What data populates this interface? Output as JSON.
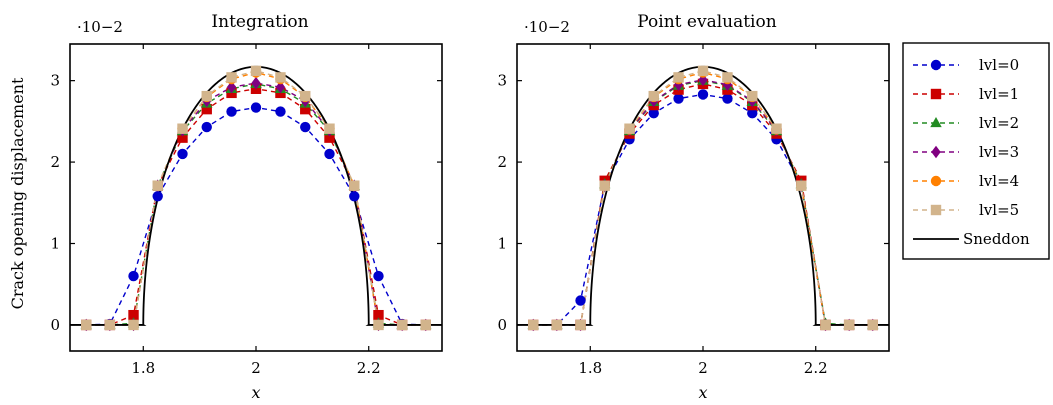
{
  "chart_data": [
    {
      "type": "line",
      "title": "Integration",
      "xlabel": "x",
      "ylabel": "Crack opening displacement",
      "y_multiplier": "·10−2",
      "xlim": [
        1.67,
        2.33
      ],
      "ylim": [
        -0.32,
        3.45
      ],
      "xticks": [
        "1.8",
        "2",
        "2.2"
      ],
      "xtick_values": [
        1.8,
        2.0,
        2.2
      ],
      "yticks": [
        "0",
        "1",
        "2",
        "3"
      ],
      "ytick_values": [
        0,
        1,
        2,
        3
      ],
      "grid": false,
      "x": [
        1.6988,
        1.7407,
        1.7827,
        1.8256,
        1.8696,
        1.9126,
        1.9566,
        2.0,
        2.0434,
        2.0874,
        2.1304,
        2.1744,
        2.2173,
        2.2593,
        2.3012
      ],
      "series": [
        {
          "name": "lvl=0",
          "color": "#0000cc",
          "marker": "circle",
          "values": [
            0.0,
            0.01,
            0.6,
            1.58,
            2.1,
            2.43,
            2.62,
            2.67,
            2.62,
            2.43,
            2.1,
            1.58,
            0.6,
            0.01,
            0.0
          ]
        },
        {
          "name": "lvl=1",
          "color": "#cc0000",
          "marker": "square",
          "values": [
            0.0,
            0.0,
            0.12,
            1.71,
            2.3,
            2.65,
            2.85,
            2.9,
            2.85,
            2.65,
            2.3,
            1.71,
            0.12,
            0.0,
            0.0
          ]
        },
        {
          "name": "lvl=2",
          "color": "#228b22",
          "marker": "triangle",
          "values": [
            0.0,
            0.0,
            0.02,
            1.71,
            2.38,
            2.72,
            2.9,
            2.96,
            2.9,
            2.72,
            2.38,
            1.71,
            0.02,
            0.0,
            0.0
          ]
        },
        {
          "name": "lvl=3",
          "color": "#800080",
          "marker": "diamond",
          "values": [
            0.0,
            0.0,
            0.0,
            1.71,
            2.39,
            2.75,
            2.92,
            2.97,
            2.92,
            2.75,
            2.39,
            1.71,
            0.0,
            0.0,
            0.0
          ]
        },
        {
          "name": "lvl=4",
          "color": "#ff8000",
          "marker": "circle",
          "values": [
            0.0,
            0.0,
            0.0,
            1.71,
            2.41,
            2.8,
            3.02,
            3.1,
            3.02,
            2.8,
            2.41,
            1.71,
            0.0,
            0.0,
            0.0
          ]
        },
        {
          "name": "lvl=5",
          "color": "#d2b48c",
          "marker": "square",
          "values": [
            0.0,
            0.0,
            0.0,
            1.71,
            2.41,
            2.81,
            3.04,
            3.12,
            3.04,
            2.81,
            2.41,
            1.71,
            0.0,
            0.0,
            0.0
          ]
        }
      ],
      "reference": {
        "name": "Sneddon",
        "color": "#000000",
        "center": 2.0,
        "half_length": 0.2,
        "max": 3.17
      }
    },
    {
      "type": "line",
      "title": "Point evaluation",
      "xlabel": "x",
      "ylabel": "",
      "y_multiplier": "·10−2",
      "xlim": [
        1.67,
        2.33
      ],
      "ylim": [
        -0.32,
        3.45
      ],
      "xticks": [
        "1.8",
        "2",
        "2.2"
      ],
      "xtick_values": [
        1.8,
        2.0,
        2.2
      ],
      "yticks": [
        "0",
        "1",
        "2",
        "3"
      ],
      "ytick_values": [
        0,
        1,
        2,
        3
      ],
      "grid": false,
      "x": [
        1.6988,
        1.7407,
        1.7827,
        1.8256,
        1.8696,
        1.9126,
        1.9566,
        2.0,
        2.0434,
        2.0874,
        2.1304,
        2.1744,
        2.2173,
        2.2593,
        2.3012
      ],
      "series": [
        {
          "name": "lvl=0",
          "color": "#0000cc",
          "marker": "circle",
          "values": [
            0.0,
            0.0,
            0.3,
            1.72,
            2.28,
            2.6,
            2.78,
            2.83,
            2.78,
            2.6,
            2.28,
            1.72,
            0.0,
            0.0,
            0.0
          ]
        },
        {
          "name": "lvl=1",
          "color": "#cc0000",
          "marker": "square",
          "values": [
            0.0,
            0.0,
            0.0,
            1.77,
            2.35,
            2.7,
            2.89,
            2.96,
            2.89,
            2.7,
            2.35,
            1.77,
            0.0,
            0.0,
            0.0
          ]
        },
        {
          "name": "lvl=2",
          "color": "#228b22",
          "marker": "triangle",
          "values": [
            0.0,
            0.0,
            0.0,
            1.73,
            2.38,
            2.74,
            2.94,
            3.0,
            2.94,
            2.74,
            2.38,
            1.73,
            0.02,
            0.0,
            0.0
          ]
        },
        {
          "name": "lvl=3",
          "color": "#800080",
          "marker": "diamond",
          "values": [
            0.0,
            0.0,
            0.0,
            1.71,
            2.39,
            2.75,
            2.95,
            3.01,
            2.95,
            2.75,
            2.39,
            1.71,
            0.0,
            0.0,
            0.0
          ]
        },
        {
          "name": "lvl=4",
          "color": "#ff8000",
          "marker": "circle",
          "values": [
            0.0,
            0.0,
            0.0,
            1.71,
            2.4,
            2.8,
            3.02,
            3.1,
            3.02,
            2.8,
            2.4,
            1.71,
            0.0,
            0.0,
            0.0
          ]
        },
        {
          "name": "lvl=5",
          "color": "#d2b48c",
          "marker": "square",
          "values": [
            0.0,
            0.0,
            0.0,
            1.71,
            2.41,
            2.81,
            3.04,
            3.12,
            3.04,
            2.81,
            2.41,
            1.71,
            0.0,
            0.0,
            0.0
          ]
        }
      ],
      "reference": {
        "name": "Sneddon",
        "color": "#000000",
        "center": 2.0,
        "half_length": 0.2,
        "max": 3.17
      }
    }
  ],
  "legend": {
    "placement": "right",
    "entries": [
      {
        "label": "lvl=0",
        "color": "#0000cc",
        "marker": "circle",
        "dashed": true
      },
      {
        "label": "lvl=1",
        "color": "#cc0000",
        "marker": "square",
        "dashed": true
      },
      {
        "label": "lvl=2",
        "color": "#228b22",
        "marker": "triangle",
        "dashed": true
      },
      {
        "label": "lvl=3",
        "color": "#800080",
        "marker": "diamond",
        "dashed": true
      },
      {
        "label": "lvl=4",
        "color": "#ff8000",
        "marker": "circle",
        "dashed": true
      },
      {
        "label": "lvl=5",
        "color": "#d2b48c",
        "marker": "square",
        "dashed": true
      },
      {
        "label": "Sneddon",
        "color": "#000000",
        "marker": "none",
        "dashed": false
      }
    ]
  }
}
